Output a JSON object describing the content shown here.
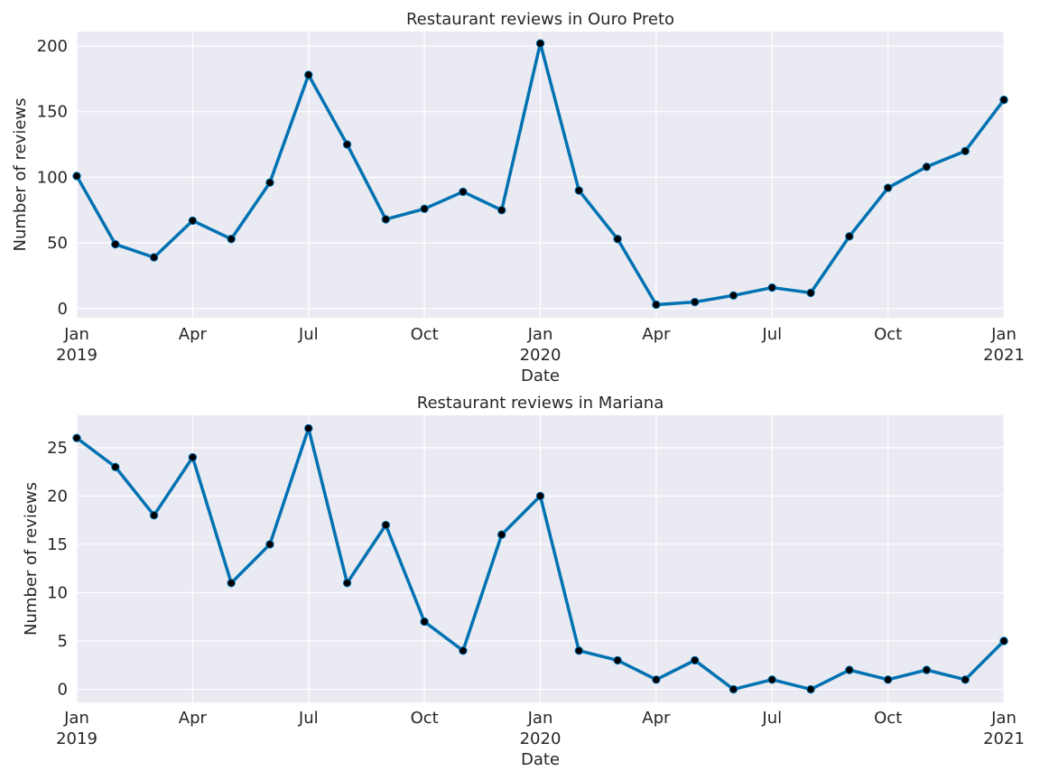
{
  "chart_data": [
    {
      "type": "line",
      "title": "Restaurant reviews in Ouro Preto",
      "xlabel": "Date",
      "ylabel": "Number of reviews",
      "x": [
        "2019-01",
        "2019-02",
        "2019-03",
        "2019-04",
        "2019-05",
        "2019-06",
        "2019-07",
        "2019-08",
        "2019-09",
        "2019-10",
        "2019-11",
        "2019-12",
        "2020-01",
        "2020-02",
        "2020-03",
        "2020-04",
        "2020-05",
        "2020-06",
        "2020-07",
        "2020-08",
        "2020-09",
        "2020-10",
        "2020-11",
        "2020-12",
        "2021-01"
      ],
      "series": [
        {
          "values": [
            101,
            49,
            39,
            67,
            53,
            96,
            178,
            125,
            68,
            76,
            89,
            75,
            202,
            90,
            53,
            3,
            5,
            10,
            16,
            12,
            55,
            92,
            108,
            120,
            159
          ]
        }
      ],
      "ylim": [
        -7,
        211
      ],
      "yticks": [
        0,
        50,
        100,
        150,
        200
      ],
      "xticks": [
        {
          "x": "2019-01",
          "label": "Jan",
          "sublabel": "2019"
        },
        {
          "x": "2019-04",
          "label": "Apr",
          "sublabel": ""
        },
        {
          "x": "2019-07",
          "label": "Jul",
          "sublabel": ""
        },
        {
          "x": "2019-10",
          "label": "Oct",
          "sublabel": ""
        },
        {
          "x": "2020-01",
          "label": "Jan",
          "sublabel": "2020"
        },
        {
          "x": "2020-04",
          "label": "Apr",
          "sublabel": ""
        },
        {
          "x": "2020-07",
          "label": "Jul",
          "sublabel": ""
        },
        {
          "x": "2020-10",
          "label": "Oct",
          "sublabel": ""
        },
        {
          "x": "2021-01",
          "label": "Jan",
          "sublabel": "2021"
        }
      ],
      "grid": true,
      "line_color": "#0072b2",
      "marker_color": "#000000",
      "background": "#eaeaf2"
    },
    {
      "type": "line",
      "title": "Restaurant reviews in Mariana",
      "xlabel": "Date",
      "ylabel": "Number of reviews",
      "x": [
        "2019-01",
        "2019-02",
        "2019-03",
        "2019-04",
        "2019-05",
        "2019-06",
        "2019-07",
        "2019-08",
        "2019-09",
        "2019-10",
        "2019-11",
        "2019-12",
        "2020-01",
        "2020-02",
        "2020-03",
        "2020-04",
        "2020-05",
        "2020-06",
        "2020-07",
        "2020-08",
        "2020-09",
        "2020-10",
        "2020-11",
        "2020-12",
        "2021-01"
      ],
      "series": [
        {
          "values": [
            26,
            23,
            18,
            24,
            11,
            15,
            27,
            11,
            17,
            7,
            4,
            16,
            20,
            4,
            3,
            1,
            3,
            0,
            1,
            0,
            2,
            1,
            2,
            1,
            5
          ]
        }
      ],
      "ylim": [
        -1.35,
        28.35
      ],
      "yticks": [
        0,
        5,
        10,
        15,
        20,
        25
      ],
      "xticks": [
        {
          "x": "2019-01",
          "label": "Jan",
          "sublabel": "2019"
        },
        {
          "x": "2019-04",
          "label": "Apr",
          "sublabel": ""
        },
        {
          "x": "2019-07",
          "label": "Jul",
          "sublabel": ""
        },
        {
          "x": "2019-10",
          "label": "Oct",
          "sublabel": ""
        },
        {
          "x": "2020-01",
          "label": "Jan",
          "sublabel": "2020"
        },
        {
          "x": "2020-04",
          "label": "Apr",
          "sublabel": ""
        },
        {
          "x": "2020-07",
          "label": "Jul",
          "sublabel": ""
        },
        {
          "x": "2020-10",
          "label": "Oct",
          "sublabel": ""
        },
        {
          "x": "2021-01",
          "label": "Jan",
          "sublabel": "2021"
        }
      ],
      "grid": true,
      "line_color": "#0072b2",
      "marker_color": "#000000",
      "background": "#eaeaf2"
    }
  ]
}
